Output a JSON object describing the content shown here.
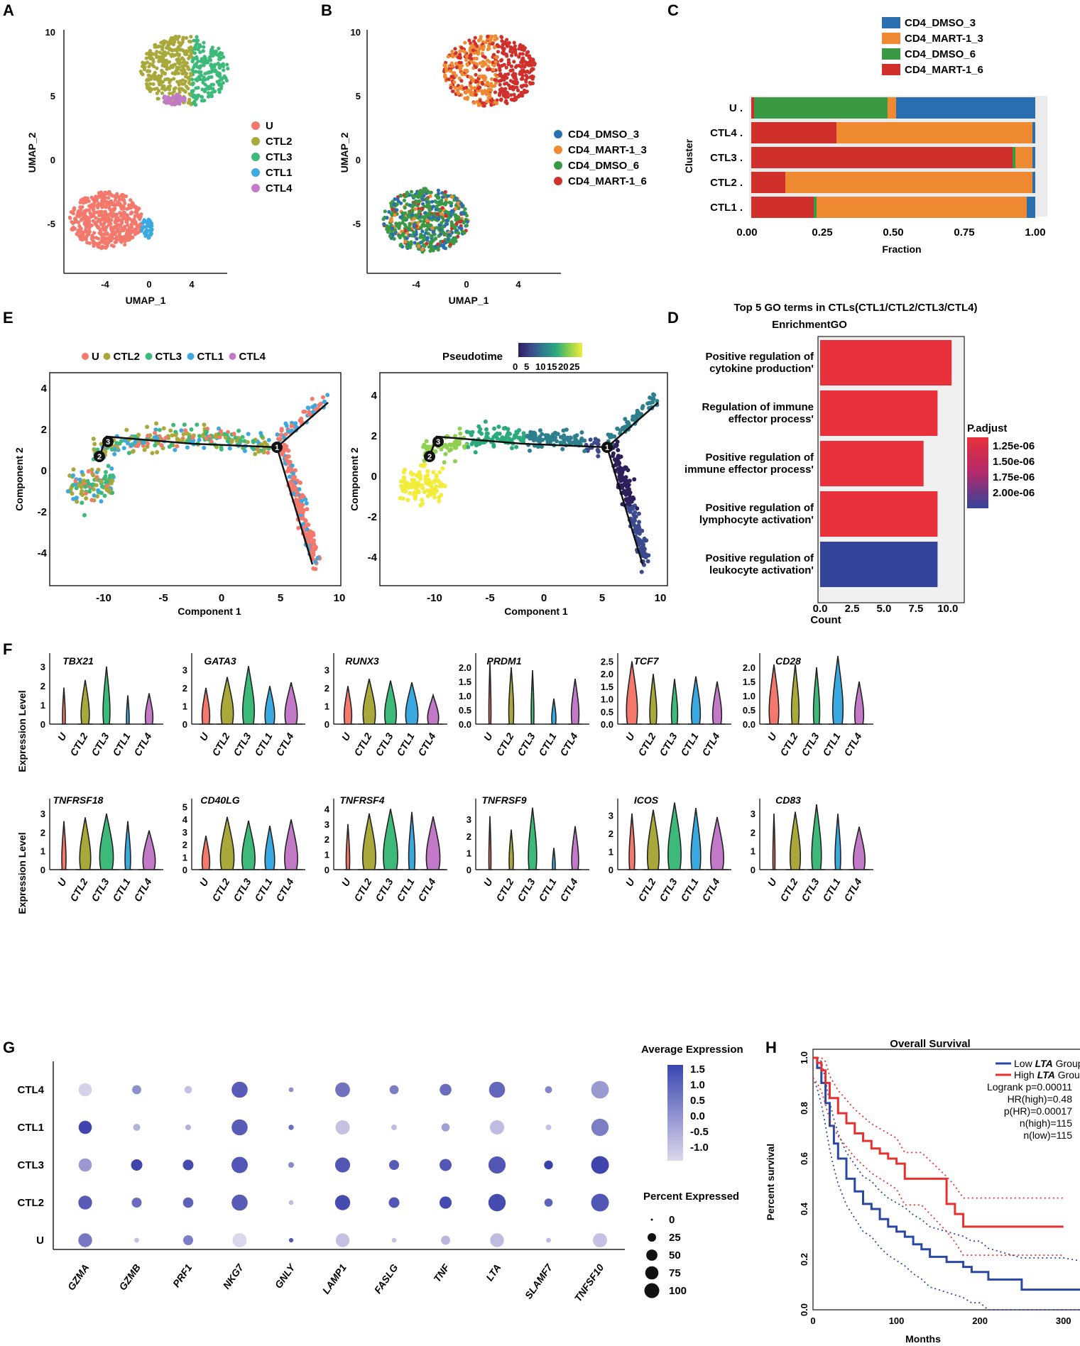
{
  "figure": {
    "panel_labels": [
      "A",
      "B",
      "C",
      "D",
      "E",
      "F",
      "G",
      "H"
    ]
  },
  "panelA": {
    "xlabel": "UMAP_1",
    "ylabel": "UMAP_2",
    "xticks": [
      "-4",
      "0",
      "4"
    ],
    "yticks": [
      "10",
      "5",
      "0",
      "-5"
    ],
    "legend": [
      {
        "label": "U",
        "color": "#f4786c"
      },
      {
        "label": "CTL2",
        "color": "#a9a83a"
      },
      {
        "label": "CTL3",
        "color": "#3dba7a"
      },
      {
        "label": "CTL1",
        "color": "#3aa9e0"
      },
      {
        "label": "CTL4",
        "color": "#c27ac8"
      }
    ]
  },
  "panelB": {
    "xlabel": "UMAP_1",
    "ylabel": "UMAP_2",
    "xticks": [
      "-4",
      "0",
      "4"
    ],
    "yticks": [
      "10",
      "5",
      "0",
      "-5"
    ],
    "legend": [
      {
        "label": "CD4_DMSO_3",
        "color": "#2a6fb0"
      },
      {
        "label": "CD4_MART-1_3",
        "color": "#ef8a33"
      },
      {
        "label": "CD4_DMSO_6",
        "color": "#3a9a44"
      },
      {
        "label": "CD4_MART-1_6",
        "color": "#d0302c"
      }
    ]
  },
  "panelC": {
    "chart_data": {
      "type": "bar",
      "orientation": "horizontal-stacked",
      "categories": [
        "U",
        "CTL4",
        "CTL3",
        "CTL2",
        "CTL1"
      ],
      "series": [
        {
          "name": "CD4_MART-1_6",
          "color": "#d0302c",
          "values": [
            0.01,
            0.3,
            0.92,
            0.12,
            0.22
          ]
        },
        {
          "name": "CD4_DMSO_6",
          "color": "#3a9a44",
          "values": [
            0.47,
            0.0,
            0.01,
            0.0,
            0.01
          ]
        },
        {
          "name": "CD4_MART-1_3",
          "color": "#ef8a33",
          "values": [
            0.03,
            0.69,
            0.06,
            0.87,
            0.74
          ]
        },
        {
          "name": "CD4_DMSO_3",
          "color": "#2a6fb0",
          "values": [
            0.49,
            0.01,
            0.01,
            0.01,
            0.03
          ]
        }
      ],
      "xlabel": "Fraction",
      "ylabel": "Cluster",
      "xticks": [
        "0.00",
        "0.25",
        "0.50",
        "0.75",
        "1.00"
      ],
      "xlim": [
        0,
        1
      ]
    },
    "legend": [
      {
        "label": "CD4_DMSO_3",
        "color": "#2a6fb0"
      },
      {
        "label": "CD4_MART-1_3",
        "color": "#ef8a33"
      },
      {
        "label": "CD4_DMSO_6",
        "color": "#3a9a44"
      },
      {
        "label": "CD4_MART-1_6",
        "color": "#d0302c"
      }
    ]
  },
  "panelD": {
    "chart_data": {
      "type": "bar",
      "title": "Top 5 GO terms in CTLs(CTL1/CTL2/CTL3/CTL4)",
      "subtitle": "EnrichmentGO",
      "categories": [
        [
          "Positive regulation of",
          "cytokine production"
        ],
        [
          "Regulation of immune",
          "effector process"
        ],
        [
          "Positive regulation of",
          "immune effector process"
        ],
        [
          "Positive regulation of",
          "lymphocyte activation"
        ],
        [
          "Positive regulation of",
          "leukocyte activation"
        ]
      ],
      "values": [
        10.3,
        9.2,
        8.1,
        9.2,
        9.2
      ],
      "colors": [
        "#e8313b",
        "#e8313b",
        "#e8313b",
        "#e8313b",
        "#34449a"
      ],
      "xlabel": "Count",
      "xticks": [
        "0.0",
        "2.5",
        "5.0",
        "7.5",
        "10.0"
      ],
      "xlim": [
        0,
        10.9
      ],
      "colorbar_title": "P.adjust",
      "colorbar_ticks": [
        "1.25e-06",
        "1.50e-06",
        "1.75e-06",
        "2.00e-06"
      ]
    }
  },
  "panelE": {
    "left_legend": [
      {
        "label": "U",
        "color": "#f4786c"
      },
      {
        "label": "CTL2",
        "color": "#a9a83a"
      },
      {
        "label": "CTL3",
        "color": "#3dba7a"
      },
      {
        "label": "CTL1",
        "color": "#3aa9e0"
      },
      {
        "label": "CTL4",
        "color": "#c27ac8"
      }
    ],
    "xlabel": "Component 1",
    "ylabel": "Component 2",
    "xticks": [
      "-10",
      "-5",
      "0",
      "5",
      "10"
    ],
    "yticks_left": [
      "4",
      "2",
      "0",
      "-2",
      "-4"
    ],
    "yticks_right": [
      "4",
      "2",
      "0",
      "-2",
      "-4"
    ],
    "pseudotime_title": "Pseudotime",
    "pseudotime_ticks": [
      "0",
      "5",
      "10",
      "15",
      "20",
      "25"
    ],
    "nodes": [
      "1",
      "2",
      "3"
    ]
  },
  "panelF": {
    "ylabel": "Expression Level",
    "groups": [
      "U",
      "CTL2",
      "CTL3",
      "CTL1",
      "CTL4"
    ],
    "group_colors": [
      "#f4786c",
      "#a9a83a",
      "#3dba7a",
      "#3aa9e0",
      "#c27ac8"
    ],
    "row1": [
      {
        "gene": "TBX21",
        "yticks": [
          "0",
          "1",
          "2",
          "3"
        ],
        "ymax": 3.4,
        "peaks": [
          1.9,
          2.3,
          3.0,
          1.5,
          1.6
        ],
        "width": [
          0.1,
          0.5,
          0.4,
          0.1,
          0.45
        ]
      },
      {
        "gene": "GATA3",
        "yticks": [
          "0",
          "1",
          "2",
          "3"
        ],
        "ymax": 3.6,
        "peaks": [
          2.0,
          2.6,
          3.2,
          2.1,
          2.3
        ],
        "width": [
          0.45,
          0.8,
          0.75,
          0.6,
          0.8
        ]
      },
      {
        "gene": "RUNX3",
        "yticks": [
          "0",
          "1",
          "2",
          "3"
        ],
        "ymax": 3.6,
        "peaks": [
          2.1,
          2.5,
          2.4,
          2.3,
          1.6
        ],
        "width": [
          0.45,
          0.8,
          0.75,
          0.8,
          0.7
        ]
      },
      {
        "gene": "PRDM1",
        "yticks": [
          "0.0",
          "0.5",
          "1.0",
          "1.5",
          "2.0"
        ],
        "ymax": 2.3,
        "peaks": [
          2.2,
          2.0,
          1.9,
          0.9,
          1.6
        ],
        "width": [
          0.05,
          0.25,
          0.1,
          0.2,
          0.45
        ]
      },
      {
        "gene": "TCF7",
        "yticks": [
          "0.0",
          "0.5",
          "1.0",
          "1.5",
          "2.0",
          "2.5"
        ],
        "ymax": 2.6,
        "peaks": [
          2.5,
          2.0,
          1.8,
          1.9,
          1.7
        ],
        "width": [
          0.7,
          0.4,
          0.35,
          0.55,
          0.55
        ]
      },
      {
        "gene": "CD28",
        "yticks": [
          "0.0",
          "0.5",
          "1.0",
          "1.5",
          "2.0"
        ],
        "ymax": 2.3,
        "peaks": [
          2.1,
          2.1,
          2.0,
          2.4,
          1.5
        ],
        "width": [
          0.6,
          0.45,
          0.35,
          0.65,
          0.55
        ]
      }
    ],
    "row2": [
      {
        "gene": "TNFRSF18",
        "yticks": [
          "0",
          "1",
          "2",
          "3"
        ],
        "ymax": 3.5,
        "peaks": [
          2.6,
          2.8,
          3.0,
          2.6,
          2.1
        ],
        "width": [
          0.2,
          0.7,
          0.9,
          0.3,
          0.8
        ]
      },
      {
        "gene": "CD40LG",
        "yticks": [
          "0",
          "1",
          "2",
          "3",
          "4",
          "5"
        ],
        "ymax": 5.2,
        "peaks": [
          2.7,
          4.2,
          3.9,
          3.5,
          4.0
        ],
        "width": [
          0.45,
          0.9,
          0.85,
          0.6,
          0.85
        ]
      },
      {
        "gene": "TNFRSF4",
        "yticks": [
          "0",
          "1",
          "2",
          "3",
          "4"
        ],
        "ymax": 4.3,
        "peaks": [
          3.0,
          3.7,
          4.0,
          3.8,
          3.5
        ],
        "width": [
          0.15,
          0.85,
          0.95,
          0.35,
          0.9
        ]
      },
      {
        "gene": "TNFRSF9",
        "yticks": [
          "0",
          "1",
          "2",
          "3"
        ],
        "ymax": 3.9,
        "peaks": [
          3.2,
          2.4,
          3.7,
          1.3,
          2.6
        ],
        "width": [
          0.05,
          0.2,
          0.5,
          0.1,
          0.4
        ]
      },
      {
        "gene": "ICOS",
        "yticks": [
          "0",
          "1",
          "2",
          "3"
        ],
        "ymax": 3.6,
        "peaks": [
          3.1,
          3.3,
          3.7,
          3.4,
          2.9
        ],
        "width": [
          0.3,
          0.75,
          0.85,
          0.6,
          0.85
        ]
      },
      {
        "gene": "CD83",
        "yticks": [
          "0",
          "1",
          "2",
          "3"
        ],
        "ymax": 3.5,
        "peaks": [
          3.0,
          3.1,
          3.5,
          3.0,
          2.3
        ],
        "width": [
          0.05,
          0.65,
          0.6,
          0.3,
          0.75
        ]
      }
    ]
  },
  "panelG": {
    "chart_data": {
      "type": "scatter",
      "subtype": "dotplot",
      "genes": [
        "GZMA",
        "GZMB",
        "PRF1",
        "NKG7",
        "GNLY",
        "LAMP1",
        "FASLG",
        "TNF",
        "LTA",
        "SLAMF7",
        "TNFSF10"
      ],
      "clusters": [
        "CTL4",
        "CTL1",
        "CTL3",
        "CTL2",
        "U"
      ],
      "avg_expression": [
        [
          -1.2,
          0.0,
          -0.9,
          0.9,
          0.0,
          0.5,
          0.3,
          0.6,
          0.7,
          0.2,
          -0.2
        ],
        [
          1.3,
          -0.6,
          -0.6,
          0.9,
          0.6,
          -0.9,
          -0.8,
          -0.3,
          -0.8,
          -0.9,
          0.3
        ],
        [
          -0.2,
          1.3,
          1.2,
          1.0,
          0.1,
          1.0,
          0.9,
          1.0,
          1.0,
          1.4,
          1.3
        ],
        [
          0.9,
          0.6,
          0.8,
          0.9,
          -0.8,
          1.2,
          1.0,
          1.2,
          1.2,
          0.8,
          1.0
        ],
        [
          0.4,
          -0.9,
          0.3,
          -1.3,
          1.0,
          -0.9,
          -0.9,
          -0.7,
          -0.8,
          -0.8,
          -0.9
        ]
      ],
      "pct_expressed": [
        [
          50,
          20,
          12,
          80,
          3,
          65,
          20,
          38,
          80,
          10,
          98
        ],
        [
          50,
          10,
          5,
          80,
          4,
          60,
          5,
          15,
          60,
          5,
          95
        ],
        [
          50,
          35,
          30,
          82,
          5,
          68,
          25,
          40,
          92,
          18,
          100
        ],
        [
          55,
          25,
          28,
          80,
          3,
          70,
          30,
          42,
          95,
          15,
          100
        ],
        [
          55,
          3,
          25,
          60,
          2,
          55,
          3,
          20,
          55,
          3,
          60
        ]
      ],
      "colorbar_title": "Average Expression",
      "colorbar_ticks": [
        "1.5",
        "1.0",
        "0.5",
        "0.0",
        "-0.5",
        "-1.0"
      ],
      "size_title": "Percent Expressed",
      "size_ticks": [
        "0",
        "25",
        "50",
        "75",
        "100"
      ]
    }
  },
  "panelH": {
    "chart_data": {
      "type": "line",
      "subtype": "kaplan-meier",
      "title": "Overall Survival",
      "xlabel": "Months",
      "ylabel": "Percent survival",
      "xticks": [
        "0",
        "100",
        "200",
        "300"
      ],
      "yticks": [
        "0.0",
        "0.2",
        "0.4",
        "0.6",
        "0.8",
        "1.0"
      ],
      "xlim": [
        0,
        370
      ],
      "ylim": [
        0,
        1
      ],
      "series": [
        {
          "name": "Low LTA Group",
          "color": "#2b47a4",
          "x": [
            0,
            5,
            10,
            15,
            20,
            25,
            30,
            40,
            50,
            60,
            70,
            80,
            90,
            100,
            110,
            120,
            130,
            140,
            160,
            180,
            190,
            200,
            210,
            250,
            300,
            365,
            370
          ],
          "y": [
            1.0,
            0.96,
            0.9,
            0.82,
            0.73,
            0.66,
            0.6,
            0.52,
            0.47,
            0.42,
            0.4,
            0.36,
            0.33,
            0.31,
            0.29,
            0.26,
            0.24,
            0.21,
            0.19,
            0.17,
            0.15,
            0.15,
            0.12,
            0.08,
            0.08,
            0.04,
            0.04
          ]
        },
        {
          "name": "High LTA Group",
          "color": "#e7312e",
          "x": [
            0,
            5,
            10,
            15,
            20,
            30,
            40,
            50,
            60,
            70,
            80,
            90,
            100,
            110,
            130,
            160,
            170,
            180,
            190,
            230,
            300
          ],
          "y": [
            1.0,
            0.98,
            0.95,
            0.9,
            0.84,
            0.78,
            0.74,
            0.7,
            0.67,
            0.64,
            0.62,
            0.6,
            0.58,
            0.52,
            0.52,
            0.42,
            0.38,
            0.33,
            0.33,
            0.33,
            0.33
          ]
        }
      ],
      "legend_labels": {
        "low_prefix": "Low ",
        "low_italic": "LTA",
        "low_suffix": " Group",
        "high_prefix": "High ",
        "high_italic": "LTA",
        "high_suffix": " Group"
      },
      "stats": [
        "Logrank p=0.00011",
        "HR(high)=0.48",
        "p(HR)=0.00017",
        "n(high)=115",
        "n(low)=115"
      ]
    }
  }
}
